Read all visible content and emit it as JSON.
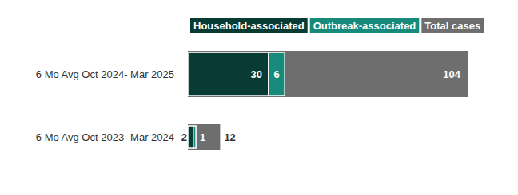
{
  "chart_data": {
    "type": "bar",
    "orientation": "horizontal",
    "categories": [
      "6 Mo Avg Oct 2024- Mar 2025",
      "6 Mo Avg Oct 2023- Mar 2024"
    ],
    "series": [
      {
        "name": "Household-associated",
        "color": "#073b33",
        "type": "stacked",
        "values": [
          30,
          2
        ]
      },
      {
        "name": "Outbreak-associated",
        "color": "#178a7b",
        "type": "stacked",
        "values": [
          6,
          1
        ]
      },
      {
        "name": "Total cases",
        "color": "#6e6e6e",
        "type": "bar",
        "values": [
          104,
          12
        ]
      }
    ],
    "xlim": [
      0,
      104
    ],
    "data_labels": true,
    "tick_labels": "y",
    "legend": "top",
    "grid": false
  }
}
